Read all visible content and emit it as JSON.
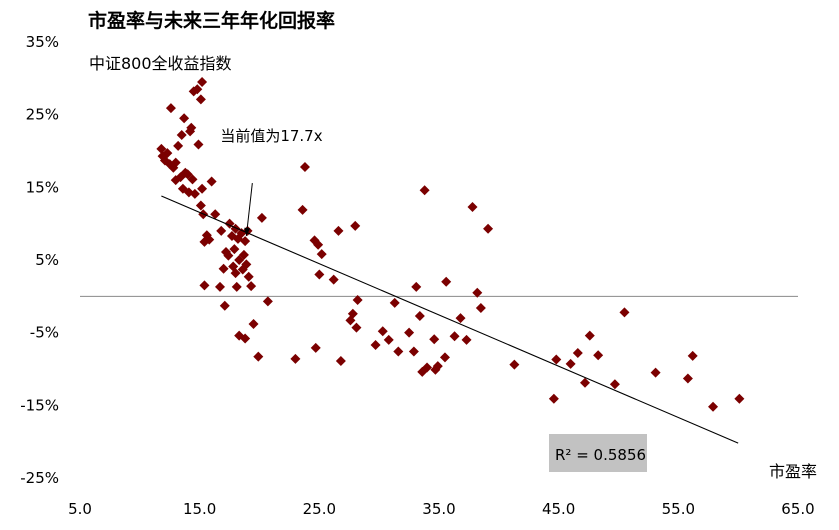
{
  "chart_data": {
    "type": "scatter",
    "title": "市盈率与未来三年年化回报率",
    "subtitle": "中证800全收益指数",
    "xlabel": "市盈率",
    "ylabel": "",
    "xlim": [
      5,
      65
    ],
    "ylim": [
      -25,
      35
    ],
    "x_ticks": [
      5,
      15,
      25,
      35,
      45,
      55,
      65
    ],
    "x_tick_labels": [
      "5.0",
      "15.0",
      "25.0",
      "35.0",
      "45.0",
      "55.0",
      "65.0"
    ],
    "y_ticks": [
      35,
      25,
      15,
      5,
      -5,
      -15,
      -25
    ],
    "y_tick_labels": [
      "35%",
      "25%",
      "15%",
      "5%",
      "-5%",
      "-15%",
      "-25%"
    ],
    "grid": false,
    "marker_color": "#7b0000",
    "trendline": {
      "x": [
        11.8,
        60.0
      ],
      "y": [
        13.8,
        -20.2
      ],
      "r2_label": "R² = 0.5856"
    },
    "annotation": {
      "text": "当前值为17.7x",
      "x": 18.9,
      "y": 8.3
    },
    "points": [
      {
        "x": 11.8,
        "y": 20.3
      },
      {
        "x": 11.9,
        "y": 19.3
      },
      {
        "x": 12.1,
        "y": 18.7
      },
      {
        "x": 12.3,
        "y": 19.7
      },
      {
        "x": 12.5,
        "y": 18.2
      },
      {
        "x": 12.6,
        "y": 25.9
      },
      {
        "x": 12.8,
        "y": 17.7
      },
      {
        "x": 13.0,
        "y": 16.0
      },
      {
        "x": 13.0,
        "y": 18.4
      },
      {
        "x": 13.2,
        "y": 20.7
      },
      {
        "x": 13.4,
        "y": 16.4
      },
      {
        "x": 13.5,
        "y": 22.2
      },
      {
        "x": 13.6,
        "y": 14.8
      },
      {
        "x": 13.7,
        "y": 24.5
      },
      {
        "x": 13.8,
        "y": 17.0
      },
      {
        "x": 14.0,
        "y": 16.8
      },
      {
        "x": 14.1,
        "y": 14.3
      },
      {
        "x": 14.2,
        "y": 22.7
      },
      {
        "x": 14.3,
        "y": 23.2
      },
      {
        "x": 14.4,
        "y": 16.1
      },
      {
        "x": 14.5,
        "y": 28.2
      },
      {
        "x": 14.6,
        "y": 14.1
      },
      {
        "x": 14.8,
        "y": 28.5
      },
      {
        "x": 14.9,
        "y": 20.9
      },
      {
        "x": 15.1,
        "y": 27.1
      },
      {
        "x": 15.2,
        "y": 29.5
      },
      {
        "x": 15.2,
        "y": 14.8
      },
      {
        "x": 15.1,
        "y": 12.5
      },
      {
        "x": 15.3,
        "y": 11.3
      },
      {
        "x": 15.4,
        "y": 1.5
      },
      {
        "x": 15.4,
        "y": 7.5
      },
      {
        "x": 15.6,
        "y": 8.4
      },
      {
        "x": 15.8,
        "y": 7.8
      },
      {
        "x": 16.0,
        "y": 15.8
      },
      {
        "x": 16.3,
        "y": 11.3
      },
      {
        "x": 16.7,
        "y": 1.3
      },
      {
        "x": 16.8,
        "y": 9.0
      },
      {
        "x": 17.0,
        "y": 3.8
      },
      {
        "x": 17.1,
        "y": -1.3
      },
      {
        "x": 17.2,
        "y": 6.1
      },
      {
        "x": 17.4,
        "y": 5.6
      },
      {
        "x": 17.5,
        "y": 10.0
      },
      {
        "x": 17.7,
        "y": 8.3
      },
      {
        "x": 17.8,
        "y": 4.1
      },
      {
        "x": 17.9,
        "y": 6.5
      },
      {
        "x": 18.0,
        "y": 3.2
      },
      {
        "x": 18.0,
        "y": 9.3
      },
      {
        "x": 18.1,
        "y": 1.3
      },
      {
        "x": 18.2,
        "y": 7.9
      },
      {
        "x": 18.3,
        "y": 5.0
      },
      {
        "x": 18.3,
        "y": -5.4
      },
      {
        "x": 18.5,
        "y": 8.7
      },
      {
        "x": 18.6,
        "y": 3.7
      },
      {
        "x": 18.7,
        "y": 5.7
      },
      {
        "x": 18.8,
        "y": 7.6
      },
      {
        "x": 18.8,
        "y": -5.8
      },
      {
        "x": 18.9,
        "y": 4.4
      },
      {
        "x": 19.0,
        "y": 9.0
      },
      {
        "x": 19.1,
        "y": 2.7
      },
      {
        "x": 19.3,
        "y": 1.4
      },
      {
        "x": 19.5,
        "y": -3.8
      },
      {
        "x": 19.9,
        "y": -8.3
      },
      {
        "x": 20.2,
        "y": 10.8
      },
      {
        "x": 20.7,
        "y": -0.7
      },
      {
        "x": 23.0,
        "y": -8.6
      },
      {
        "x": 23.6,
        "y": 11.9
      },
      {
        "x": 23.8,
        "y": 17.8
      },
      {
        "x": 24.6,
        "y": 7.7
      },
      {
        "x": 24.7,
        "y": -7.1
      },
      {
        "x": 24.9,
        "y": 7.1
      },
      {
        "x": 25.0,
        "y": 3.0
      },
      {
        "x": 25.2,
        "y": 5.8
      },
      {
        "x": 26.2,
        "y": 2.3
      },
      {
        "x": 26.6,
        "y": 9.0
      },
      {
        "x": 26.8,
        "y": -8.9
      },
      {
        "x": 27.6,
        "y": -3.3
      },
      {
        "x": 27.8,
        "y": -2.4
      },
      {
        "x": 28.0,
        "y": 9.7
      },
      {
        "x": 28.1,
        "y": -4.3
      },
      {
        "x": 28.2,
        "y": -0.5
      },
      {
        "x": 29.7,
        "y": -6.7
      },
      {
        "x": 30.3,
        "y": -4.8
      },
      {
        "x": 30.8,
        "y": -6.0
      },
      {
        "x": 31.3,
        "y": -0.9
      },
      {
        "x": 31.6,
        "y": -7.6
      },
      {
        "x": 32.5,
        "y": -5.0
      },
      {
        "x": 32.9,
        "y": -7.6
      },
      {
        "x": 33.1,
        "y": 1.3
      },
      {
        "x": 33.4,
        "y": -2.7
      },
      {
        "x": 33.6,
        "y": -10.4
      },
      {
        "x": 33.8,
        "y": 14.6
      },
      {
        "x": 34.0,
        "y": -9.8
      },
      {
        "x": 34.6,
        "y": -5.9
      },
      {
        "x": 34.7,
        "y": -10.1
      },
      {
        "x": 34.9,
        "y": -9.6
      },
      {
        "x": 35.5,
        "y": -8.4
      },
      {
        "x": 35.6,
        "y": 2.0
      },
      {
        "x": 36.3,
        "y": -5.5
      },
      {
        "x": 36.8,
        "y": -3.0
      },
      {
        "x": 37.3,
        "y": -6.0
      },
      {
        "x": 37.8,
        "y": 12.3
      },
      {
        "x": 38.2,
        "y": 0.5
      },
      {
        "x": 38.5,
        "y": -1.6
      },
      {
        "x": 39.1,
        "y": 9.3
      },
      {
        "x": 41.3,
        "y": -9.4
      },
      {
        "x": 44.6,
        "y": -14.1
      },
      {
        "x": 44.8,
        "y": -8.7
      },
      {
        "x": 46.0,
        "y": -9.3
      },
      {
        "x": 46.6,
        "y": -7.8
      },
      {
        "x": 47.2,
        "y": -11.9
      },
      {
        "x": 47.6,
        "y": -5.4
      },
      {
        "x": 48.3,
        "y": -8.1
      },
      {
        "x": 49.7,
        "y": -12.1
      },
      {
        "x": 50.5,
        "y": -2.2
      },
      {
        "x": 53.1,
        "y": -10.5
      },
      {
        "x": 55.8,
        "y": -11.3
      },
      {
        "x": 56.2,
        "y": -8.2
      },
      {
        "x": 57.9,
        "y": -15.2
      },
      {
        "x": 60.1,
        "y": -14.1
      }
    ]
  }
}
